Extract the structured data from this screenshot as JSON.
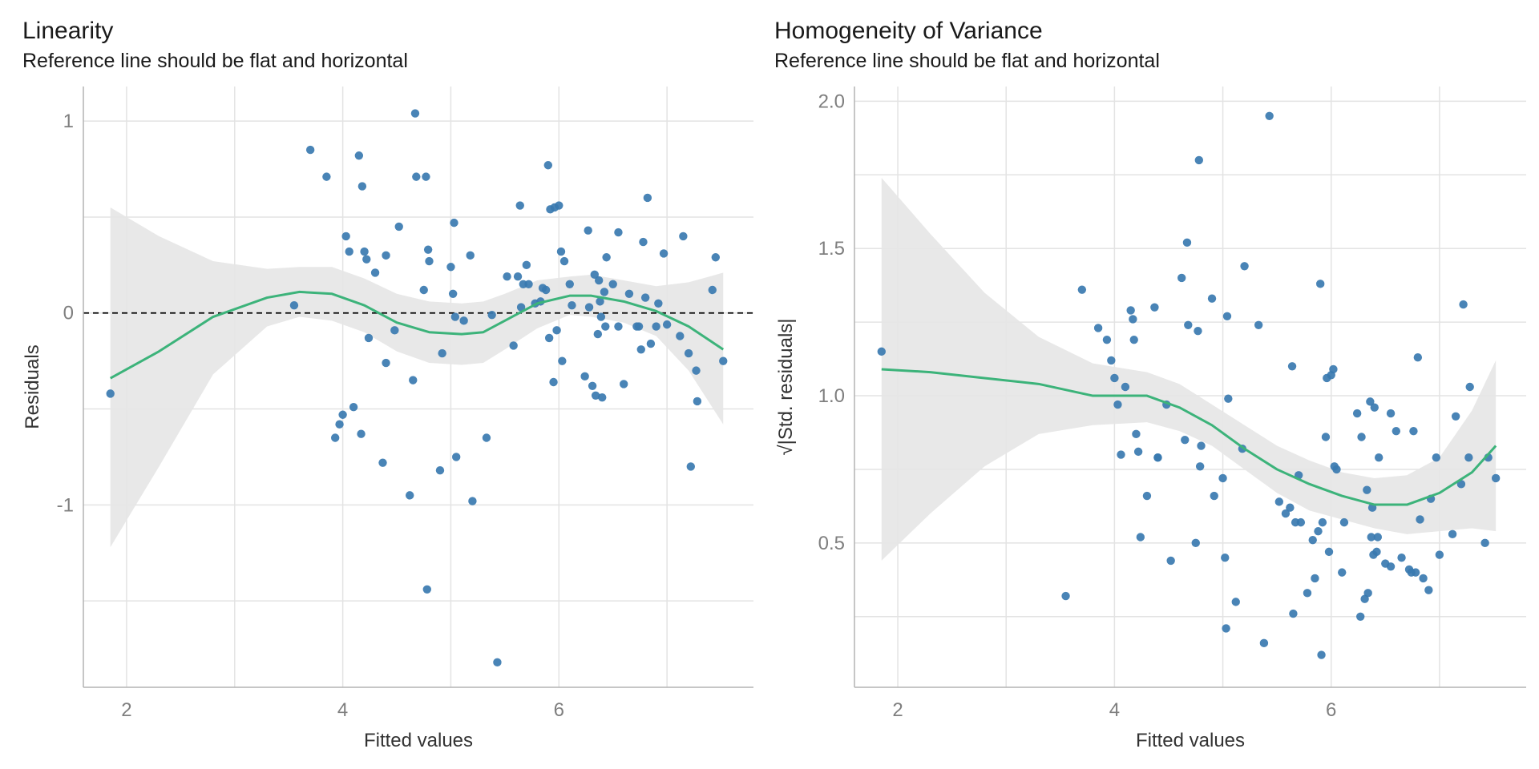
{
  "chart_data": [
    {
      "type": "scatter",
      "title": "Linearity",
      "subtitle": "Reference line should be flat and horizontal",
      "xlabel": "Fitted values",
      "ylabel": "Residuals",
      "xlim": [
        1.6,
        7.8
      ],
      "ylim": [
        -1.95,
        1.18
      ],
      "xticks": [
        2,
        4,
        6
      ],
      "xminor": [
        3,
        5,
        7
      ],
      "yticks": [
        -1,
        0,
        1
      ],
      "yminor": [
        -1.5,
        -0.5,
        0.5
      ],
      "reference_line_y": 0,
      "colors": {
        "points": "#3a7ab0",
        "smooth": "#3cb37a",
        "band": "#e6e6e6",
        "grid": "#e3e3e3",
        "axis": "#b3b3b3",
        "tick_text": "#7f7f7f"
      },
      "points": [
        [
          1.85,
          -0.42
        ],
        [
          3.55,
          0.04
        ],
        [
          3.7,
          0.85
        ],
        [
          3.85,
          0.71
        ],
        [
          3.93,
          -0.65
        ],
        [
          3.97,
          -0.58
        ],
        [
          4.0,
          -0.53
        ],
        [
          4.03,
          0.4
        ],
        [
          4.06,
          0.32
        ],
        [
          4.1,
          -0.49
        ],
        [
          4.15,
          0.82
        ],
        [
          4.17,
          -0.63
        ],
        [
          4.18,
          0.66
        ],
        [
          4.2,
          0.32
        ],
        [
          4.22,
          0.28
        ],
        [
          4.24,
          -0.13
        ],
        [
          4.3,
          0.21
        ],
        [
          4.37,
          -0.78
        ],
        [
          4.4,
          -0.26
        ],
        [
          4.4,
          0.3
        ],
        [
          4.48,
          -0.09
        ],
        [
          4.52,
          0.45
        ],
        [
          4.62,
          -0.95
        ],
        [
          4.65,
          -0.35
        ],
        [
          4.67,
          1.04
        ],
        [
          4.68,
          0.71
        ],
        [
          4.75,
          0.12
        ],
        [
          4.77,
          0.71
        ],
        [
          4.78,
          -1.44
        ],
        [
          4.79,
          0.33
        ],
        [
          4.8,
          0.27
        ],
        [
          4.9,
          -0.82
        ],
        [
          4.92,
          -0.21
        ],
        [
          5.0,
          0.24
        ],
        [
          5.02,
          0.1
        ],
        [
          5.03,
          0.47
        ],
        [
          5.04,
          -0.02
        ],
        [
          5.05,
          -0.75
        ],
        [
          5.12,
          -0.04
        ],
        [
          5.18,
          0.3
        ],
        [
          5.2,
          -0.98
        ],
        [
          5.33,
          -0.65
        ],
        [
          5.38,
          -0.01
        ],
        [
          5.43,
          -1.82
        ],
        [
          5.52,
          0.19
        ],
        [
          5.58,
          -0.17
        ],
        [
          5.62,
          0.19
        ],
        [
          5.64,
          0.56
        ],
        [
          5.65,
          0.03
        ],
        [
          5.67,
          0.15
        ],
        [
          5.7,
          0.25
        ],
        [
          5.72,
          0.15
        ],
        [
          5.78,
          0.05
        ],
        [
          5.83,
          0.06
        ],
        [
          5.85,
          0.13
        ],
        [
          5.88,
          0.12
        ],
        [
          5.9,
          0.77
        ],
        [
          5.91,
          -0.13
        ],
        [
          5.92,
          0.54
        ],
        [
          5.95,
          -0.36
        ],
        [
          5.96,
          0.55
        ],
        [
          5.98,
          -0.09
        ],
        [
          6.0,
          0.56
        ],
        [
          6.02,
          0.32
        ],
        [
          6.03,
          -0.25
        ],
        [
          6.05,
          0.27
        ],
        [
          6.1,
          0.15
        ],
        [
          6.12,
          0.04
        ],
        [
          6.24,
          -0.33
        ],
        [
          6.27,
          0.43
        ],
        [
          6.28,
          0.03
        ],
        [
          6.31,
          -0.38
        ],
        [
          6.33,
          0.2
        ],
        [
          6.34,
          -0.43
        ],
        [
          6.36,
          -0.11
        ],
        [
          6.37,
          0.17
        ],
        [
          6.38,
          0.06
        ],
        [
          6.39,
          -0.02
        ],
        [
          6.4,
          -0.44
        ],
        [
          6.42,
          0.11
        ],
        [
          6.43,
          -0.07
        ],
        [
          6.44,
          0.29
        ],
        [
          6.5,
          0.15
        ],
        [
          6.55,
          0.42
        ],
        [
          6.55,
          -0.07
        ],
        [
          6.6,
          -0.37
        ],
        [
          6.65,
          0.1
        ],
        [
          6.72,
          -0.07
        ],
        [
          6.74,
          -0.07
        ],
        [
          6.76,
          -0.19
        ],
        [
          6.78,
          0.37
        ],
        [
          6.8,
          0.08
        ],
        [
          6.82,
          0.6
        ],
        [
          6.85,
          -0.16
        ],
        [
          6.9,
          -0.07
        ],
        [
          6.92,
          0.05
        ],
        [
          6.97,
          0.31
        ],
        [
          7.0,
          -0.06
        ],
        [
          7.12,
          -0.12
        ],
        [
          7.15,
          0.4
        ],
        [
          7.2,
          -0.21
        ],
        [
          7.22,
          -0.8
        ],
        [
          7.27,
          -0.3
        ],
        [
          7.28,
          -0.46
        ],
        [
          7.42,
          0.12
        ],
        [
          7.45,
          0.29
        ],
        [
          7.52,
          -0.25
        ]
      ],
      "smooth_line": [
        [
          1.85,
          -0.34
        ],
        [
          2.3,
          -0.2
        ],
        [
          2.8,
          -0.02
        ],
        [
          3.3,
          0.08
        ],
        [
          3.6,
          0.11
        ],
        [
          3.9,
          0.1
        ],
        [
          4.2,
          0.04
        ],
        [
          4.5,
          -0.05
        ],
        [
          4.8,
          -0.1
        ],
        [
          5.1,
          -0.11
        ],
        [
          5.3,
          -0.1
        ],
        [
          5.5,
          -0.04
        ],
        [
          5.8,
          0.05
        ],
        [
          6.1,
          0.09
        ],
        [
          6.3,
          0.09
        ],
        [
          6.6,
          0.06
        ],
        [
          6.9,
          0.01
        ],
        [
          7.2,
          -0.07
        ],
        [
          7.52,
          -0.19
        ]
      ],
      "band_upper": [
        [
          1.85,
          0.55
        ],
        [
          2.3,
          0.4
        ],
        [
          2.8,
          0.27
        ],
        [
          3.3,
          0.23
        ],
        [
          3.6,
          0.24
        ],
        [
          3.9,
          0.24
        ],
        [
          4.2,
          0.18
        ],
        [
          4.5,
          0.1
        ],
        [
          4.8,
          0.06
        ],
        [
          5.1,
          0.05
        ],
        [
          5.3,
          0.06
        ],
        [
          5.5,
          0.1
        ],
        [
          5.8,
          0.17
        ],
        [
          6.1,
          0.19
        ],
        [
          6.3,
          0.2
        ],
        [
          6.6,
          0.17
        ],
        [
          6.9,
          0.14
        ],
        [
          7.2,
          0.16
        ],
        [
          7.52,
          0.21
        ]
      ],
      "band_lower": [
        [
          1.85,
          -1.22
        ],
        [
          2.3,
          -0.8
        ],
        [
          2.8,
          -0.32
        ],
        [
          3.3,
          -0.07
        ],
        [
          3.6,
          -0.02
        ],
        [
          3.9,
          -0.04
        ],
        [
          4.2,
          -0.1
        ],
        [
          4.5,
          -0.2
        ],
        [
          4.8,
          -0.26
        ],
        [
          5.1,
          -0.27
        ],
        [
          5.3,
          -0.26
        ],
        [
          5.5,
          -0.19
        ],
        [
          5.8,
          -0.08
        ],
        [
          6.1,
          -0.01
        ],
        [
          6.3,
          -0.02
        ],
        [
          6.6,
          -0.05
        ],
        [
          6.9,
          -0.12
        ],
        [
          7.2,
          -0.3
        ],
        [
          7.52,
          -0.58
        ]
      ]
    },
    {
      "type": "scatter",
      "title": "Homogeneity of Variance",
      "subtitle": "Reference line should be flat and horizontal",
      "xlabel": "Fitted values",
      "ylabel": "|Std. residuals|",
      "ylabel_prefix": "√",
      "xlim": [
        1.6,
        7.8
      ],
      "ylim": [
        0.01,
        2.05
      ],
      "xticks": [
        2,
        4,
        6
      ],
      "xminor": [
        3,
        5,
        7
      ],
      "yticks": [
        0.5,
        1.0,
        1.5,
        2.0
      ],
      "ytick_labels": [
        "0.5",
        "1.0",
        "1.5",
        "2.0"
      ],
      "yminor": [
        0.25,
        0.75,
        1.25,
        1.75
      ],
      "colors": {
        "points": "#3a7ab0",
        "smooth": "#3cb37a",
        "band": "#e6e6e6",
        "grid": "#e3e3e3",
        "axis": "#b3b3b3",
        "tick_text": "#7f7f7f"
      },
      "points": [
        [
          1.85,
          1.15
        ],
        [
          3.55,
          0.32
        ],
        [
          3.7,
          1.36
        ],
        [
          3.85,
          1.23
        ],
        [
          3.93,
          1.19
        ],
        [
          3.97,
          1.12
        ],
        [
          4.0,
          1.06
        ],
        [
          4.03,
          0.97
        ],
        [
          4.06,
          0.8
        ],
        [
          4.1,
          1.03
        ],
        [
          4.15,
          1.29
        ],
        [
          4.17,
          1.26
        ],
        [
          4.18,
          1.19
        ],
        [
          4.2,
          0.87
        ],
        [
          4.22,
          0.81
        ],
        [
          4.24,
          0.52
        ],
        [
          4.3,
          0.66
        ],
        [
          4.37,
          1.3
        ],
        [
          4.4,
          0.79
        ],
        [
          4.4,
          0.79
        ],
        [
          4.48,
          0.97
        ],
        [
          4.52,
          0.44
        ],
        [
          4.62,
          1.4
        ],
        [
          4.65,
          0.85
        ],
        [
          4.67,
          1.52
        ],
        [
          4.68,
          1.24
        ],
        [
          4.75,
          0.5
        ],
        [
          4.77,
          1.22
        ],
        [
          4.78,
          1.8
        ],
        [
          4.79,
          0.76
        ],
        [
          4.8,
          0.83
        ],
        [
          4.9,
          1.33
        ],
        [
          4.92,
          0.66
        ],
        [
          5.0,
          0.72
        ],
        [
          5.02,
          0.45
        ],
        [
          5.03,
          0.21
        ],
        [
          5.04,
          1.27
        ],
        [
          5.05,
          0.99
        ],
        [
          5.12,
          0.3
        ],
        [
          5.18,
          0.82
        ],
        [
          5.2,
          1.44
        ],
        [
          5.33,
          1.24
        ],
        [
          5.38,
          0.16
        ],
        [
          5.43,
          1.95
        ],
        [
          5.52,
          0.64
        ],
        [
          5.58,
          0.6
        ],
        [
          5.62,
          0.62
        ],
        [
          5.64,
          1.1
        ],
        [
          5.65,
          0.26
        ],
        [
          5.67,
          0.57
        ],
        [
          5.7,
          0.73
        ],
        [
          5.72,
          0.57
        ],
        [
          5.78,
          0.33
        ],
        [
          5.83,
          0.51
        ],
        [
          5.85,
          0.38
        ],
        [
          5.88,
          0.54
        ],
        [
          5.9,
          1.38
        ],
        [
          5.91,
          0.12
        ],
        [
          5.92,
          0.57
        ],
        [
          5.95,
          0.86
        ],
        [
          5.96,
          1.06
        ],
        [
          5.98,
          0.47
        ],
        [
          6.0,
          1.07
        ],
        [
          6.02,
          1.09
        ],
        [
          6.03,
          0.76
        ],
        [
          6.05,
          0.75
        ],
        [
          6.1,
          0.4
        ],
        [
          6.12,
          0.57
        ],
        [
          6.24,
          0.94
        ],
        [
          6.27,
          0.25
        ],
        [
          6.28,
          0.86
        ],
        [
          6.31,
          0.31
        ],
        [
          6.33,
          0.68
        ],
        [
          6.34,
          0.33
        ],
        [
          6.36,
          0.98
        ],
        [
          6.37,
          0.52
        ],
        [
          6.38,
          0.62
        ],
        [
          6.39,
          0.46
        ],
        [
          6.4,
          0.96
        ],
        [
          6.42,
          0.47
        ],
        [
          6.43,
          0.52
        ],
        [
          6.44,
          0.79
        ],
        [
          6.5,
          0.43
        ],
        [
          6.55,
          0.94
        ],
        [
          6.55,
          0.42
        ],
        [
          6.6,
          0.88
        ],
        [
          6.65,
          0.45
        ],
        [
          6.72,
          0.41
        ],
        [
          6.74,
          0.4
        ],
        [
          6.76,
          0.88
        ],
        [
          6.78,
          0.4
        ],
        [
          6.8,
          1.13
        ],
        [
          6.82,
          0.58
        ],
        [
          6.85,
          0.38
        ],
        [
          6.9,
          0.34
        ],
        [
          6.92,
          0.65
        ],
        [
          6.97,
          0.79
        ],
        [
          7.0,
          0.46
        ],
        [
          7.12,
          0.53
        ],
        [
          7.15,
          0.93
        ],
        [
          7.2,
          0.7
        ],
        [
          7.22,
          1.31
        ],
        [
          7.27,
          0.79
        ],
        [
          7.28,
          1.03
        ],
        [
          7.42,
          0.5
        ],
        [
          7.45,
          0.79
        ],
        [
          7.52,
          0.72
        ]
      ],
      "smooth_line": [
        [
          1.85,
          1.09
        ],
        [
          2.3,
          1.08
        ],
        [
          2.8,
          1.06
        ],
        [
          3.3,
          1.04
        ],
        [
          3.8,
          1.0
        ],
        [
          4.3,
          1.0
        ],
        [
          4.6,
          0.96
        ],
        [
          4.9,
          0.9
        ],
        [
          5.2,
          0.82
        ],
        [
          5.5,
          0.75
        ],
        [
          5.8,
          0.7
        ],
        [
          6.1,
          0.66
        ],
        [
          6.4,
          0.63
        ],
        [
          6.7,
          0.63
        ],
        [
          7.0,
          0.67
        ],
        [
          7.3,
          0.74
        ],
        [
          7.52,
          0.83
        ]
      ],
      "band_upper": [
        [
          1.85,
          1.74
        ],
        [
          2.3,
          1.55
        ],
        [
          2.8,
          1.35
        ],
        [
          3.3,
          1.2
        ],
        [
          3.8,
          1.11
        ],
        [
          4.3,
          1.08
        ],
        [
          4.6,
          1.04
        ],
        [
          4.9,
          0.97
        ],
        [
          5.2,
          0.9
        ],
        [
          5.5,
          0.83
        ],
        [
          5.8,
          0.78
        ],
        [
          6.1,
          0.74
        ],
        [
          6.4,
          0.72
        ],
        [
          6.7,
          0.73
        ],
        [
          7.0,
          0.79
        ],
        [
          7.3,
          0.95
        ],
        [
          7.52,
          1.12
        ]
      ],
      "band_lower": [
        [
          1.85,
          0.44
        ],
        [
          2.3,
          0.6
        ],
        [
          2.8,
          0.76
        ],
        [
          3.3,
          0.87
        ],
        [
          3.8,
          0.9
        ],
        [
          4.3,
          0.91
        ],
        [
          4.6,
          0.88
        ],
        [
          4.9,
          0.83
        ],
        [
          5.2,
          0.75
        ],
        [
          5.5,
          0.67
        ],
        [
          5.8,
          0.61
        ],
        [
          6.1,
          0.58
        ],
        [
          6.4,
          0.55
        ],
        [
          6.7,
          0.53
        ],
        [
          7.0,
          0.54
        ],
        [
          7.3,
          0.55
        ],
        [
          7.52,
          0.54
        ]
      ]
    }
  ]
}
